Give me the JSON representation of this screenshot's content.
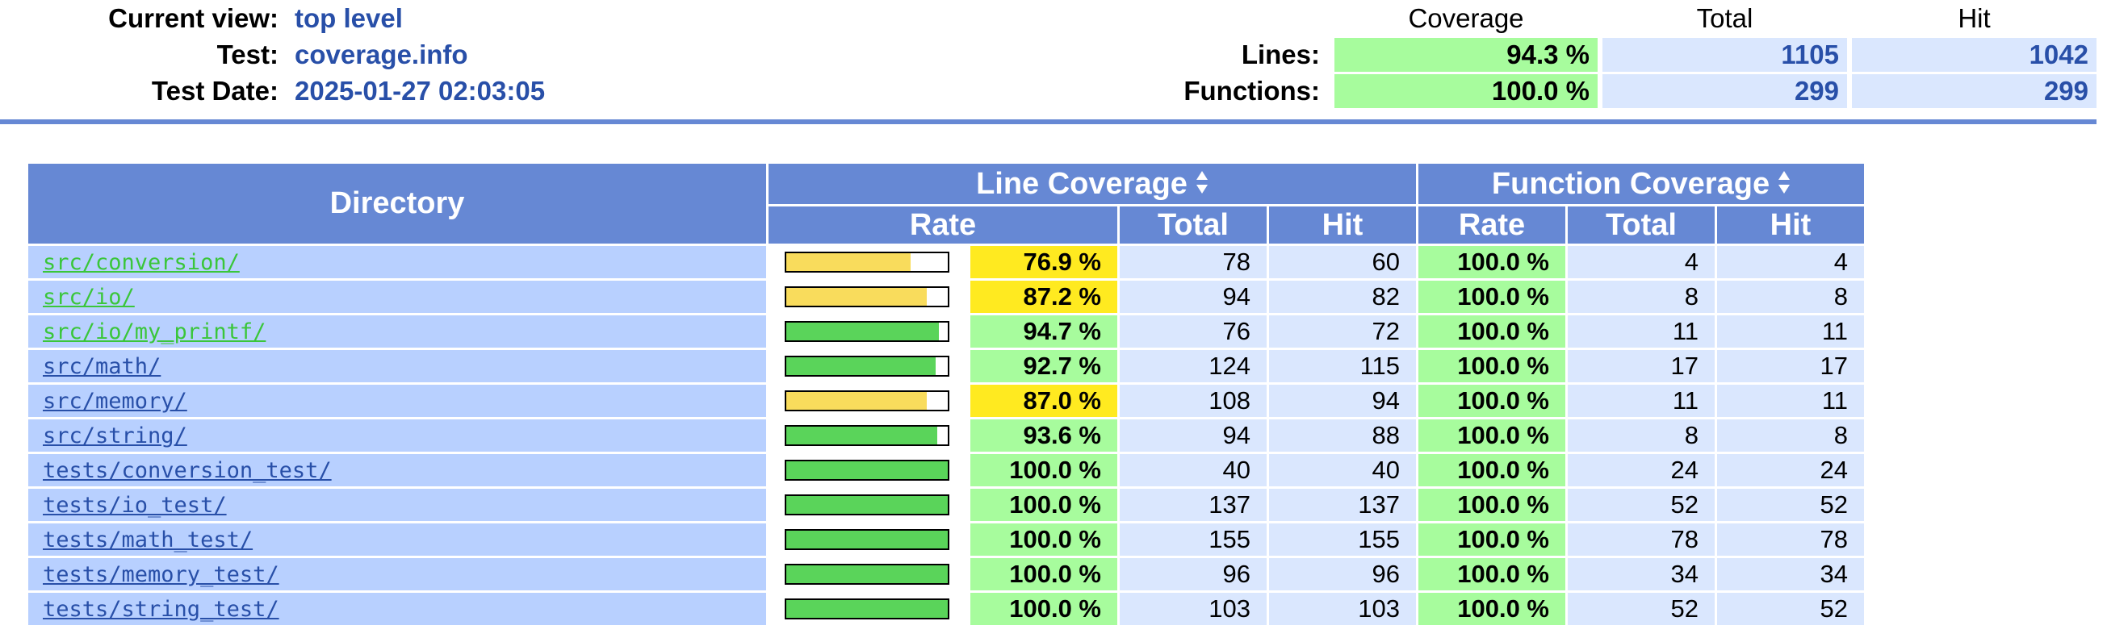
{
  "header": {
    "current_view_label": "Current view:",
    "current_view_value": "top level",
    "test_label": "Test:",
    "test_value": "coverage.info",
    "test_date_label": "Test Date:",
    "test_date_value": "2025-01-27 02:03:05"
  },
  "summary": {
    "columns": {
      "coverage": "Coverage",
      "total": "Total",
      "hit": "Hit"
    },
    "lines": {
      "label": "Lines:",
      "coverage": "94.3 %",
      "total": "1105",
      "hit": "1042"
    },
    "functions": {
      "label": "Functions:",
      "coverage": "100.0 %",
      "total": "299",
      "hit": "299"
    }
  },
  "table": {
    "headers": {
      "directory": "Directory",
      "line_coverage": "Line Coverage",
      "function_coverage": "Function Coverage",
      "rate": "Rate",
      "total": "Total",
      "hit": "Hit"
    },
    "rows": [
      {
        "dir": "src/conversion/",
        "link_color": "green",
        "line_rate": "76.9 %",
        "line_pct": 76.9,
        "line_total": "78",
        "line_hit": "60",
        "func_rate": "100.0 %",
        "func_total": "4",
        "func_hit": "4"
      },
      {
        "dir": "src/io/",
        "link_color": "green",
        "line_rate": "87.2 %",
        "line_pct": 87.2,
        "line_total": "94",
        "line_hit": "82",
        "func_rate": "100.0 %",
        "func_total": "8",
        "func_hit": "8"
      },
      {
        "dir": "src/io/my_printf/",
        "link_color": "green",
        "line_rate": "94.7 %",
        "line_pct": 94.7,
        "line_total": "76",
        "line_hit": "72",
        "func_rate": "100.0 %",
        "func_total": "11",
        "func_hit": "11"
      },
      {
        "dir": "src/math/",
        "link_color": "blue",
        "line_rate": "92.7 %",
        "line_pct": 92.7,
        "line_total": "124",
        "line_hit": "115",
        "func_rate": "100.0 %",
        "func_total": "17",
        "func_hit": "17"
      },
      {
        "dir": "src/memory/",
        "link_color": "blue",
        "line_rate": "87.0 %",
        "line_pct": 87.0,
        "line_total": "108",
        "line_hit": "94",
        "func_rate": "100.0 %",
        "func_total": "11",
        "func_hit": "11"
      },
      {
        "dir": "src/string/",
        "link_color": "blue",
        "line_rate": "93.6 %",
        "line_pct": 93.6,
        "line_total": "94",
        "line_hit": "88",
        "func_rate": "100.0 %",
        "func_total": "8",
        "func_hit": "8"
      },
      {
        "dir": "tests/conversion_test/",
        "link_color": "blue",
        "line_rate": "100.0 %",
        "line_pct": 100.0,
        "line_total": "40",
        "line_hit": "40",
        "func_rate": "100.0 %",
        "func_total": "24",
        "func_hit": "24"
      },
      {
        "dir": "tests/io_test/",
        "link_color": "blue",
        "line_rate": "100.0 %",
        "line_pct": 100.0,
        "line_total": "137",
        "line_hit": "137",
        "func_rate": "100.0 %",
        "func_total": "52",
        "func_hit": "52"
      },
      {
        "dir": "tests/math_test/",
        "link_color": "blue",
        "line_rate": "100.0 %",
        "line_pct": 100.0,
        "line_total": "155",
        "line_hit": "155",
        "func_rate": "100.0 %",
        "func_total": "78",
        "func_hit": "78"
      },
      {
        "dir": "tests/memory_test/",
        "link_color": "blue",
        "line_rate": "100.0 %",
        "line_pct": 100.0,
        "line_total": "96",
        "line_hit": "96",
        "func_rate": "100.0 %",
        "func_total": "34",
        "func_hit": "34"
      },
      {
        "dir": "tests/string_test/",
        "link_color": "blue",
        "line_rate": "100.0 %",
        "line_pct": 100.0,
        "line_total": "103",
        "line_hit": "103",
        "func_rate": "100.0 %",
        "func_total": "52",
        "func_hit": "52"
      }
    ]
  },
  "colors": {
    "header_bg": "#6688d4",
    "dir_bg": "#b8d0ff",
    "num_bg": "#dae7fe",
    "rate_high_bg": "#a7fc9d",
    "rate_med_bg": "#ffea20",
    "bar_high": "#5ad45a",
    "bar_med": "#f9dc5c",
    "link_green": "#3ac63a",
    "link_blue": "#284fa8"
  },
  "icons": {
    "sort": "sort-updown-icon"
  }
}
